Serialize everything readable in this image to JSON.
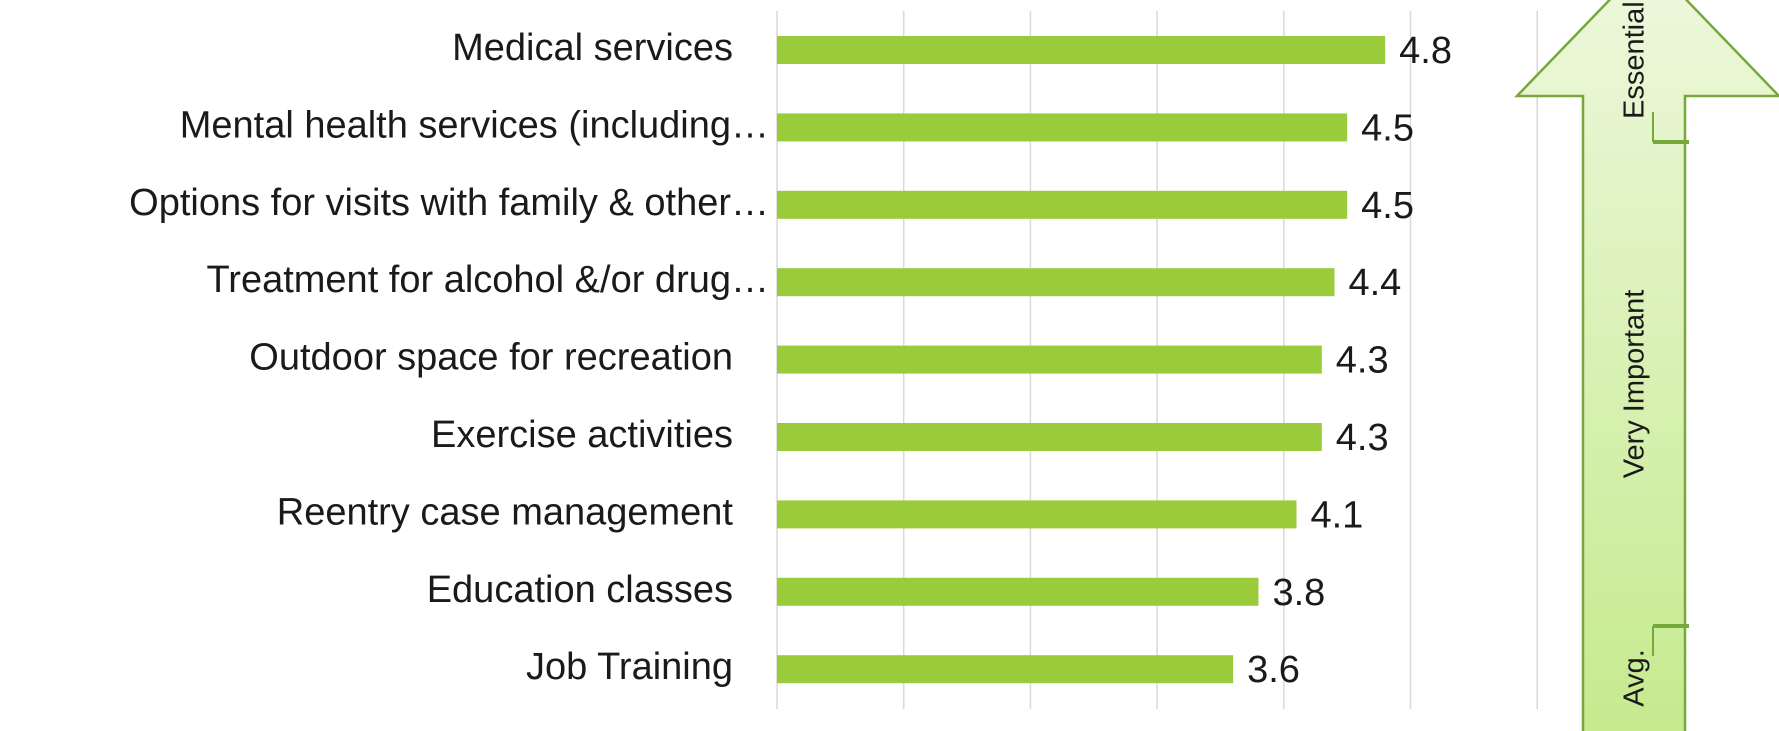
{
  "chart_data": {
    "type": "bar",
    "orientation": "horizontal",
    "categories": [
      "Medical services",
      "Mental health services (including…",
      "Options for visits with family & other…",
      "Treatment for alcohol &/or drug…",
      "Outdoor space for recreation",
      "Exercise activities",
      "Reentry case management",
      "Education classes",
      "Job Training"
    ],
    "values": [
      4.8,
      4.5,
      4.5,
      4.4,
      4.3,
      4.3,
      4.1,
      3.8,
      3.6
    ],
    "color": "#9acb3b",
    "xlim": [
      0,
      6
    ],
    "xticks": [
      0,
      1,
      2,
      3,
      4,
      5,
      6
    ],
    "grid": true,
    "annotations": [
      "Essential",
      "Very Important",
      "Avg."
    ]
  }
}
